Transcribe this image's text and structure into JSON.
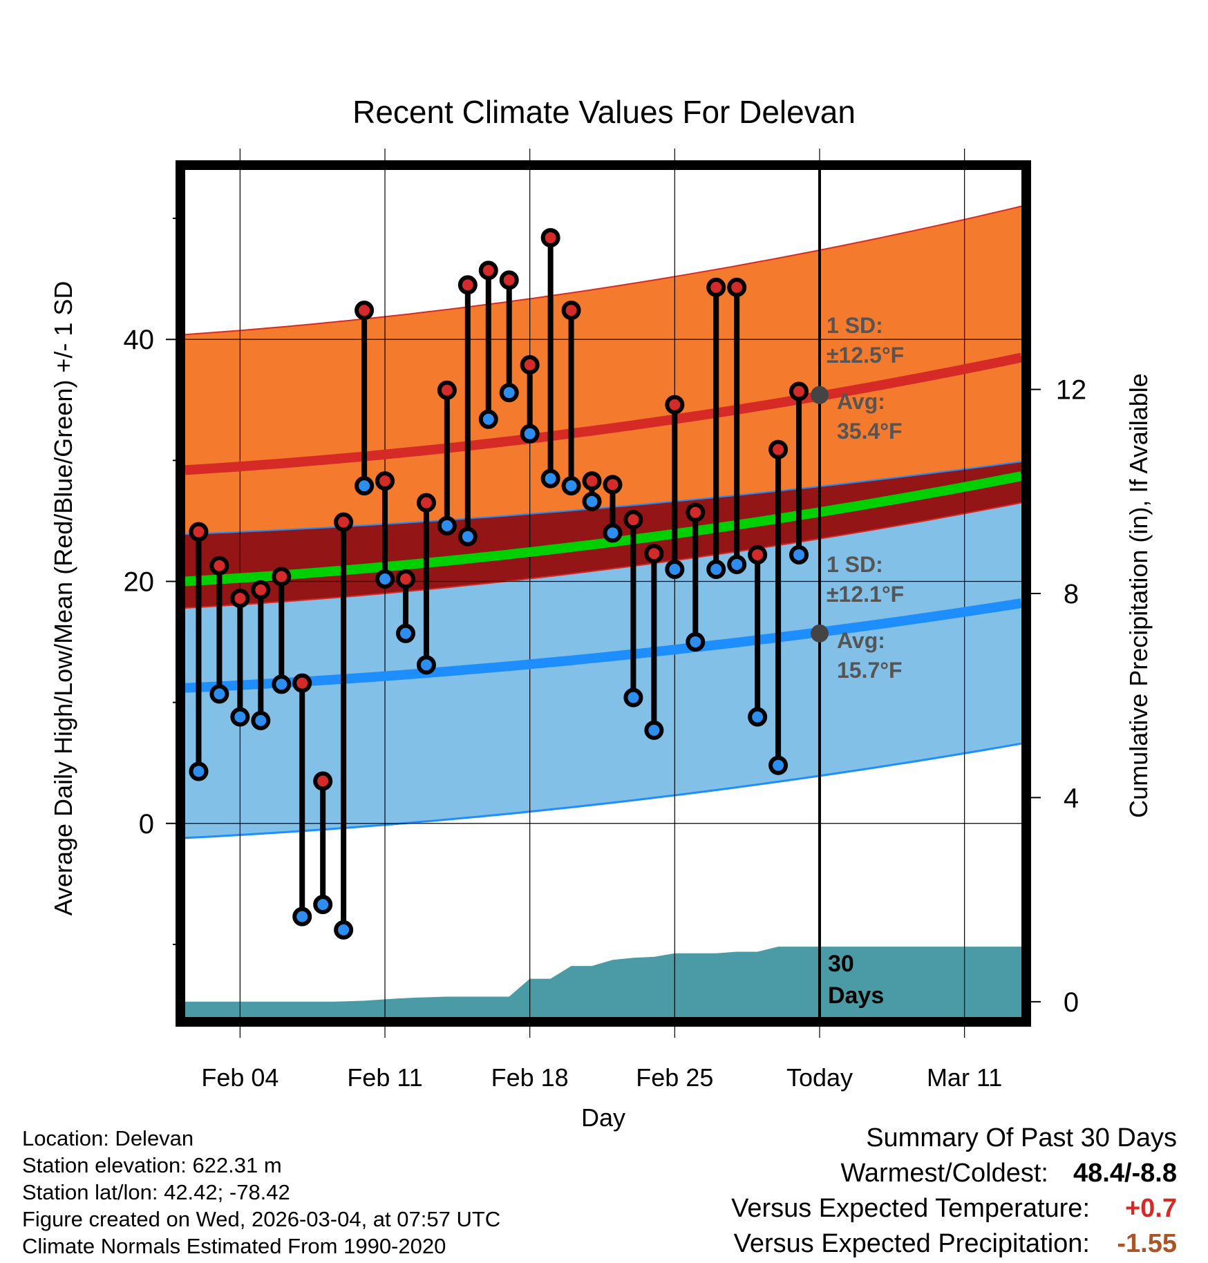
{
  "chart_data": {
    "type": "range-bar",
    "title": "Recent Climate Values For Delevan",
    "xlabel": "Day",
    "ylabel": "Average Daily High/Low/Mean (Red/Blue/Green) +/- 1 SD",
    "y2label": "Cumulative Precipitation (in), If Available",
    "ylim": [
      -16,
      54
    ],
    "y_ticks": [
      0,
      20,
      40
    ],
    "y_minor_ticks": [
      -10,
      10,
      30,
      50
    ],
    "y2lim": [
      -0.3,
      16.3
    ],
    "y2_ticks": [
      0,
      4,
      8,
      12
    ],
    "x_ticks": [
      {
        "day": 4,
        "label": "Feb 04"
      },
      {
        "day": 11,
        "label": "Feb 11"
      },
      {
        "day": 18,
        "label": "Feb 18"
      },
      {
        "day": 25,
        "label": "Feb 25"
      },
      {
        "day": 32,
        "label": "Today"
      },
      {
        "day": 39,
        "label": "Mar 11"
      }
    ],
    "x_range": [
      1.35,
      41.75
    ],
    "days": [
      2,
      3,
      4,
      5,
      6,
      7,
      8,
      9,
      10,
      11,
      12,
      13,
      14,
      15,
      16,
      17,
      18,
      19,
      20,
      21,
      22,
      23,
      24,
      25,
      26,
      27,
      28,
      29,
      30,
      31
    ],
    "highs": [
      24.1,
      21.3,
      18.6,
      19.3,
      20.4,
      11.6,
      3.5,
      24.9,
      42.4,
      28.3,
      20.2,
      26.5,
      35.8,
      44.5,
      45.7,
      44.9,
      37.9,
      48.4,
      42.4,
      28.3,
      28.0,
      25.1,
      22.3,
      34.6,
      25.7,
      44.3,
      44.3,
      22.2,
      30.9,
      35.7
    ],
    "lows": [
      4.3,
      10.7,
      8.8,
      8.5,
      11.5,
      -7.7,
      -6.7,
      -8.8,
      27.9,
      20.2,
      15.7,
      13.1,
      24.6,
      23.7,
      33.4,
      35.6,
      32.2,
      28.5,
      27.9,
      26.6,
      24.0,
      10.4,
      7.7,
      21.0,
      15.0,
      21.0,
      21.4,
      8.8,
      4.8,
      22.2
    ],
    "normals": {
      "high_avg": [
        29.2,
        38.5
      ],
      "high_sd_upper": [
        40.4,
        51.0
      ],
      "high_sd_lower": [
        23.9,
        29.9
      ],
      "low_avg": [
        11.2,
        18.2
      ],
      "low_sd_upper": [
        17.8,
        26.5
      ],
      "low_sd_lower": [
        -1.2,
        6.6
      ],
      "mean_avg": [
        20.0,
        28.7
      ]
    },
    "precip_cumulative": {
      "days": [
        1.35,
        8.5,
        10.0,
        11.5,
        12.5,
        14.0,
        15.5,
        17.0,
        18.0,
        19.0,
        20.0,
        21.0,
        22.0,
        23.0,
        24.0,
        25.0,
        26.0,
        27.0,
        28.0,
        29.0,
        30.0,
        31.0,
        41.75
      ],
      "values": [
        0,
        0,
        0.02,
        0.06,
        0.08,
        0.1,
        0.1,
        0.1,
        0.45,
        0.45,
        0.7,
        0.7,
        0.82,
        0.86,
        0.88,
        0.95,
        0.95,
        0.95,
        0.98,
        0.98,
        1.08,
        1.08,
        1.08
      ]
    },
    "today_day": 32,
    "high_annotation": {
      "sd_label": "1 SD:",
      "sd_value": "±12.5°F",
      "avg_label": "Avg:",
      "avg_value": "35.4°F",
      "avg": 35.4
    },
    "low_annotation": {
      "sd_label": "1 SD:",
      "sd_value": "±12.1°F",
      "avg_label": "Avg:",
      "avg_value": "15.7°F",
      "avg": 15.7
    },
    "period_label_number": "30",
    "period_label_unit": "Days"
  },
  "colors": {
    "high_band": "#f47a2d",
    "mid_band": "#931515",
    "low_band": "#82c0e8",
    "mean_line": "#00d000",
    "high_line": "#d62a26",
    "low_line": "#1e8eff",
    "high_dot": "#d42a2a",
    "low_dot": "#2b8ef0",
    "precip": "#4a9ba6",
    "annotation": "#555555",
    "avg_dot": "#444444"
  },
  "info": {
    "location": "Location: Delevan",
    "elevation": "Station elevation: 622.31 m",
    "latlon": "Station lat/lon: 42.42; -78.42",
    "created": "Figure created on Wed, 2026-03-04, at 07:57 UTC",
    "normals": "Climate Normals Estimated From 1990-2020"
  },
  "summary": {
    "heading": "Summary Of Past 30 Days",
    "warm_label": "Warmest/Coldest:",
    "warm_value": "48.4/-8.8",
    "temp_label": "Versus Expected Temperature:",
    "temp_value": "+0.7",
    "precip_label": "Versus Expected Precipitation:",
    "precip_value": "-1.55"
  }
}
